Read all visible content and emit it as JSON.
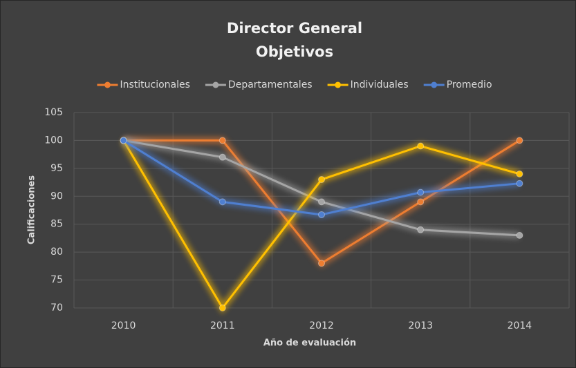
{
  "chart_data": {
    "type": "line",
    "title": "Director General",
    "subtitle": "Objetivos",
    "categories": [
      "2010",
      "2011",
      "2012",
      "2013",
      "2014"
    ],
    "series": [
      {
        "name": "Institucionales",
        "color": "#ed7d31",
        "values": [
          100,
          100,
          78,
          89,
          100
        ]
      },
      {
        "name": "Departamentales",
        "color": "#a5a5a5",
        "values": [
          100,
          97,
          89,
          84,
          83
        ]
      },
      {
        "name": "Individuales",
        "color": "#ffc000",
        "values": [
          100,
          70,
          93,
          99,
          94
        ]
      },
      {
        "name": "Promedio",
        "color": "#4f7fd0",
        "values": [
          100,
          89,
          86.7,
          90.7,
          92.3
        ]
      }
    ],
    "ylim": [
      70,
      105
    ],
    "yticks": [
      70,
      75,
      80,
      85,
      90,
      95,
      100,
      105
    ],
    "xlabel": "Año de evaluación",
    "ylabel": "Calificaciones",
    "grid": true,
    "legend": "top"
  }
}
